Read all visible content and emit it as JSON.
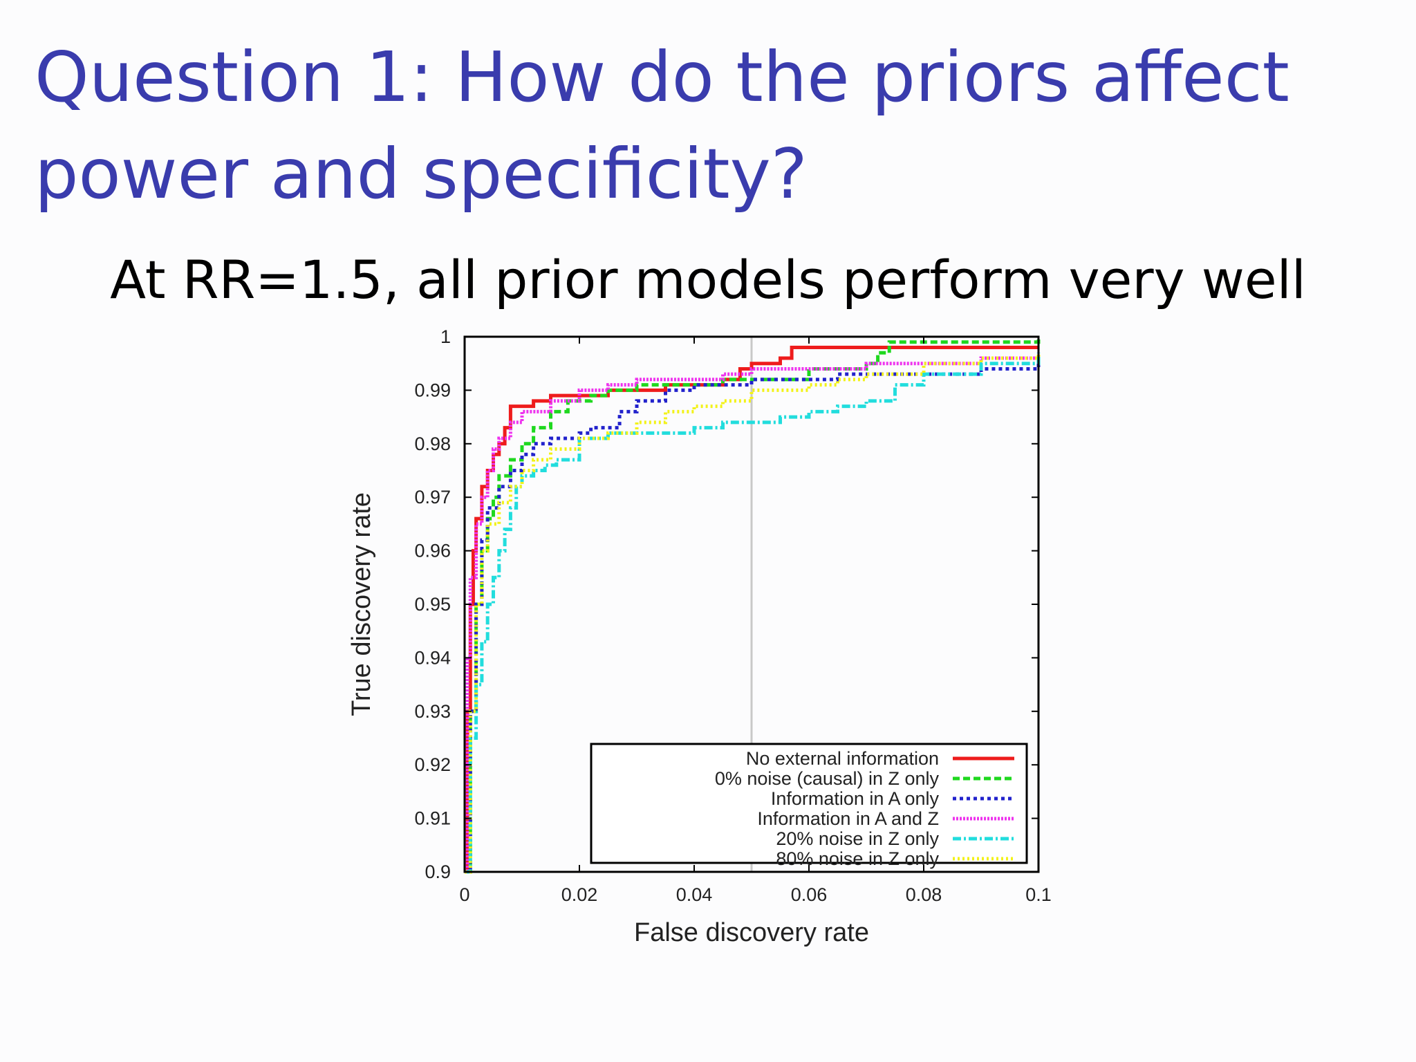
{
  "slide": {
    "title_line1": "Question 1: How do the priors affect",
    "title_line2": "power and specificity?",
    "subtitle": "At RR=1.5, all prior models perform very well"
  },
  "chart_data": {
    "type": "line",
    "xlabel": "False discovery rate",
    "ylabel": "True discovery rate",
    "xlim": [
      0,
      0.1
    ],
    "ylim": [
      0.9,
      1
    ],
    "xticks": [
      "0",
      "0.02",
      "0.04",
      "0.06",
      "0.08",
      "0.1"
    ],
    "yticks": [
      "0.9",
      "0.91",
      "0.92",
      "0.93",
      "0.94",
      "0.95",
      "0.96",
      "0.97",
      "0.98",
      "0.99",
      "1"
    ],
    "vline_x": 0.05,
    "legend_position": "bottom-right",
    "series": [
      {
        "name": "No external information",
        "color": "#ee1c1c",
        "dash": "solid",
        "x": [
          0,
          0.0005,
          0.001,
          0.0015,
          0.002,
          0.003,
          0.004,
          0.005,
          0.006,
          0.007,
          0.008,
          0.009,
          0.012,
          0.015,
          0.02,
          0.025,
          0.035,
          0.045,
          0.048,
          0.05,
          0.052,
          0.055,
          0.057,
          0.1
        ],
        "y": [
          0.9,
          0.93,
          0.95,
          0.96,
          0.966,
          0.972,
          0.975,
          0.978,
          0.98,
          0.983,
          0.987,
          0.987,
          0.988,
          0.989,
          0.989,
          0.99,
          0.991,
          0.992,
          0.994,
          0.995,
          0.995,
          0.996,
          0.998,
          0.998
        ]
      },
      {
        "name": "0% noise (causal) in Z only",
        "color": "#1fd81f",
        "dash": "10,5",
        "x": [
          0,
          0.001,
          0.002,
          0.003,
          0.004,
          0.005,
          0.006,
          0.008,
          0.01,
          0.012,
          0.015,
          0.018,
          0.022,
          0.025,
          0.03,
          0.035,
          0.04,
          0.045,
          0.05,
          0.06,
          0.07,
          0.072,
          0.074,
          0.08,
          0.09,
          0.1
        ],
        "y": [
          0.9,
          0.93,
          0.95,
          0.96,
          0.966,
          0.97,
          0.974,
          0.977,
          0.98,
          0.983,
          0.986,
          0.988,
          0.989,
          0.99,
          0.991,
          0.991,
          0.991,
          0.992,
          0.992,
          0.994,
          0.995,
          0.997,
          0.999,
          0.999,
          0.999,
          1.0
        ]
      },
      {
        "name": "Information in A only",
        "color": "#2222cc",
        "dash": "5,5",
        "x": [
          0,
          0.001,
          0.002,
          0.003,
          0.004,
          0.006,
          0.008,
          0.01,
          0.012,
          0.015,
          0.02,
          0.022,
          0.025,
          0.027,
          0.03,
          0.035,
          0.04,
          0.045,
          0.05,
          0.06,
          0.065,
          0.08,
          0.09,
          0.1
        ],
        "y": [
          0.9,
          0.93,
          0.95,
          0.962,
          0.968,
          0.972,
          0.975,
          0.978,
          0.98,
          0.981,
          0.982,
          0.983,
          0.983,
          0.986,
          0.988,
          0.99,
          0.991,
          0.991,
          0.992,
          0.992,
          0.993,
          0.993,
          0.994,
          0.995
        ]
      },
      {
        "name": "Information in A and Z",
        "color": "#ee33ee",
        "dash": "3,2",
        "x": [
          0,
          0.0005,
          0.001,
          0.002,
          0.003,
          0.004,
          0.005,
          0.006,
          0.008,
          0.01,
          0.015,
          0.02,
          0.025,
          0.03,
          0.04,
          0.045,
          0.05,
          0.06,
          0.07,
          0.08,
          0.09,
          0.1
        ],
        "y": [
          0.9,
          0.94,
          0.955,
          0.965,
          0.97,
          0.975,
          0.979,
          0.981,
          0.984,
          0.986,
          0.988,
          0.99,
          0.991,
          0.992,
          0.992,
          0.993,
          0.994,
          0.994,
          0.995,
          0.995,
          0.996,
          0.996
        ]
      },
      {
        "name": "20% noise in Z only",
        "color": "#22dddd",
        "dash": "12,4,3,4",
        "x": [
          0,
          0.001,
          0.002,
          0.003,
          0.004,
          0.005,
          0.006,
          0.007,
          0.008,
          0.009,
          0.01,
          0.012,
          0.014,
          0.016,
          0.02,
          0.025,
          0.03,
          0.04,
          0.045,
          0.05,
          0.055,
          0.06,
          0.065,
          0.07,
          0.075,
          0.08,
          0.09,
          0.1
        ],
        "y": [
          0.9,
          0.925,
          0.935,
          0.943,
          0.95,
          0.955,
          0.96,
          0.964,
          0.968,
          0.972,
          0.974,
          0.975,
          0.976,
          0.977,
          0.981,
          0.982,
          0.982,
          0.983,
          0.984,
          0.984,
          0.985,
          0.986,
          0.987,
          0.988,
          0.991,
          0.993,
          0.995,
          0.997
        ]
      },
      {
        "name": "80% noise in Z only",
        "color": "#f2f219",
        "dash": "3,4",
        "x": [
          0,
          0.001,
          0.002,
          0.003,
          0.004,
          0.006,
          0.008,
          0.01,
          0.012,
          0.015,
          0.02,
          0.025,
          0.03,
          0.035,
          0.04,
          0.045,
          0.05,
          0.06,
          0.065,
          0.07,
          0.08,
          0.09,
          0.1
        ],
        "y": [
          0.9,
          0.93,
          0.95,
          0.96,
          0.965,
          0.969,
          0.972,
          0.975,
          0.977,
          0.979,
          0.981,
          0.982,
          0.984,
          0.986,
          0.987,
          0.988,
          0.99,
          0.991,
          0.992,
          0.993,
          0.995,
          0.996,
          0.997
        ]
      }
    ]
  }
}
